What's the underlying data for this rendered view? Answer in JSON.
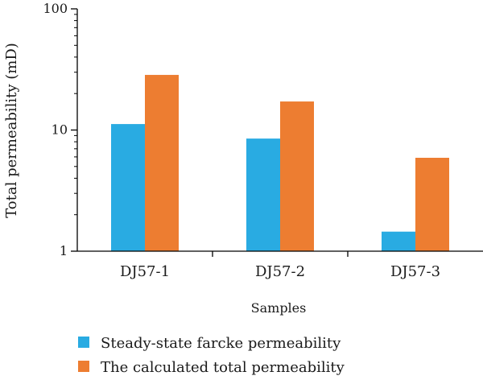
{
  "chart_data": {
    "type": "bar",
    "yscale": "log",
    "ylim": [
      1,
      100
    ],
    "yticks": [
      1,
      10,
      100
    ],
    "ylabel": "Total permeability (mD)",
    "xlabel": "Samples",
    "categories": [
      "DJ57-1",
      "DJ57-2",
      "DJ57-3"
    ],
    "series": [
      {
        "name": "Steady-state farcke permeability",
        "values": [
          11.2,
          8.5,
          1.45
        ],
        "color": "#29ABE2"
      },
      {
        "name": "The calculated total permeability",
        "values": [
          28.5,
          17.2,
          5.9
        ],
        "color": "#ED7D31"
      }
    ],
    "legend": "bottom-left",
    "grid": false
  }
}
